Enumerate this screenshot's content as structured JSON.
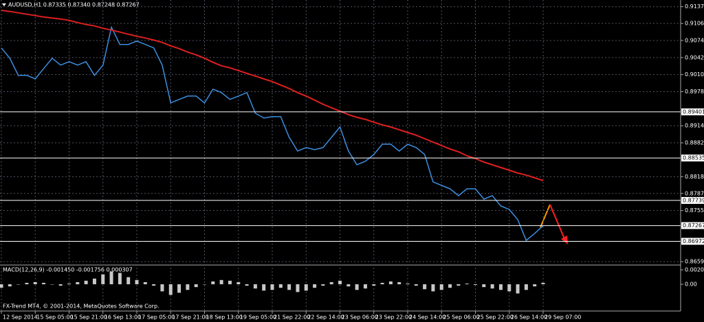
{
  "chart_data": [
    {
      "type": "line",
      "title": "AUDUSD,H1  0.87335 0.87340 0.87248 0.87267",
      "categories": [
        "12 Sep 2014",
        null,
        null,
        null,
        "15 Sep 05:00",
        null,
        null,
        null,
        "15 Sep 21:00",
        null,
        null,
        null,
        "16 Sep 13:00",
        null,
        null,
        null,
        "17 Sep 05:00",
        null,
        null,
        null,
        "17 Sep 21:00",
        null,
        null,
        null,
        "18 Sep 13:00",
        null,
        null,
        null,
        "19 Sep 05:00",
        null,
        null,
        null,
        "21 Sep 22:00",
        null,
        null,
        null,
        "22 Sep 14:00",
        null,
        null,
        null,
        "23 Sep 06:00",
        null,
        null,
        null,
        "23 Sep 22:00",
        null,
        null,
        null,
        "24 Sep 14:00",
        null,
        null,
        null,
        "25 Sep 06:00",
        null,
        null,
        null,
        "25 Sep 22:00",
        null,
        null,
        null,
        "26 Sep 14:00",
        null,
        null,
        null,
        "29 Sep 07:00"
      ],
      "series": [
        {
          "color": "#3d8fe0",
          "values": [
            0.90601,
            0.90408,
            0.90085,
            0.90085,
            0.90021,
            0.90214,
            0.90408,
            0.90279,
            0.90343,
            0.90279,
            0.90343,
            0.90085,
            0.90279,
            0.90988,
            0.90666,
            0.90666,
            0.9073,
            0.90666,
            0.90601,
            0.90279,
            0.89569,
            0.89634,
            0.89698,
            0.89698,
            0.89569,
            0.89827,
            0.89763,
            0.89634,
            0.89698,
            0.89763,
            0.89376,
            0.89286,
            0.89311,
            0.89311,
            0.88924,
            0.88666,
            0.88731,
            0.88692,
            0.88731,
            0.88924,
            0.89118,
            0.88666,
            0.88408,
            0.88473,
            0.88602,
            0.88795,
            0.88795,
            0.88666,
            0.88795,
            0.88731,
            0.88602,
            0.88086,
            0.88021,
            0.87957,
            0.87828,
            0.87957,
            0.87957,
            0.87764,
            0.87828,
            0.87635,
            0.8757,
            0.87377,
            0.8699,
            0.87119,
            0.87267
          ]
        },
        {
          "color": "#e02020",
          "values": [
            0.91307,
            0.91285,
            0.91259,
            0.91233,
            0.91207,
            0.91181,
            0.91162,
            0.91143,
            0.91117,
            0.91078,
            0.9104,
            0.91014,
            0.90969,
            0.90936,
            0.90898,
            0.90859,
            0.9082,
            0.90787,
            0.90748,
            0.90704,
            0.9064,
            0.90588,
            0.90524,
            0.90472,
            0.90407,
            0.9033,
            0.90266,
            0.90227,
            0.90175,
            0.90124,
            0.90072,
            0.9002,
            0.89969,
            0.89904,
            0.8984,
            0.89762,
            0.89698,
            0.89621,
            0.89543,
            0.89479,
            0.89414,
            0.8935,
            0.89298,
            0.89259,
            0.89208,
            0.89156,
            0.89117,
            0.89066,
            0.89014,
            0.88963,
            0.88898,
            0.88834,
            0.88769,
            0.88705,
            0.88653,
            0.88576,
            0.88524,
            0.8846,
            0.88408,
            0.88356,
            0.88305,
            0.88253,
            0.88214,
            0.88163,
            0.88111
          ]
        }
      ],
      "ylim": [
        0.8654,
        0.915
      ],
      "yticks": [
        0.91375,
        {
          "value": 0.9106,
          "label": "0.91060"
        },
        {
          "value": 0.9074,
          "label": "0.90740"
        },
        {
          "value": 0.9042,
          "label": "0.90420"
        },
        {
          "value": 0.901,
          "label": "0.90100"
        },
        {
          "value": 0.8978,
          "label": "0.89780"
        },
        {
          "value": 0.8914,
          "label": "0.89140"
        },
        {
          "value": 0.8882,
          "label": "0.88820"
        },
        0.88185,
        {
          "value": 0.8787,
          "label": "0.87870"
        },
        {
          "value": 0.8755,
          "label": "0.87550"
        },
        {
          "value": 0.8659,
          "label": "0.86590"
        }
      ],
      "levels": [
        0.89401,
        0.88535,
        0.87739,
        0.87267,
        0.86972
      ],
      "grid": true
    },
    {
      "type": "bar",
      "title": "MACD(12,26,9) -0.001450 -0.001756 0.000307",
      "color": "#c8c8c8",
      "values": [
        -0.0005,
        -0.0003,
        0,
        0.0002,
        0.0003,
        0.0002,
        0,
        -0.0002,
        0.0001,
        0.0003,
        0.0005,
        0.0008,
        0.0014,
        0.0018,
        0.0016,
        0.001,
        0.0006,
        0.0003,
        -0.0002,
        -0.001,
        -0.0015,
        -0.0012,
        -0.0008,
        -0.0004,
        0,
        0.0004,
        0.0006,
        0.0005,
        0.0003,
        -0.0002,
        -0.0006,
        -0.0009,
        -0.0008,
        -0.0005,
        -0.0008,
        -0.0011,
        -0.0009,
        -0.0005,
        -0.0002,
        0.0003,
        0.0005,
        -0.0003,
        -0.0008,
        -0.0006,
        -0.0002,
        0.0002,
        0.0004,
        0.0003,
        0.0001,
        -0.0002,
        -0.0007,
        -0.001,
        -0.0008,
        -0.0005,
        -0.0002,
        0.0001,
        -0.0001,
        -0.0004,
        -0.0006,
        -0.0008,
        -0.001,
        -0.0013,
        -0.0008,
        -0.0003,
        0.0002
      ],
      "ylim": [
        -0.00368,
        0.00262
      ],
      "yticks": [
        0.002036,
        {
          "value": 0,
          "label": "0.00"
        }
      ]
    }
  ],
  "footer": "FX-Trend MT4, © 2001-2014, MetaQuotes Software Corp."
}
